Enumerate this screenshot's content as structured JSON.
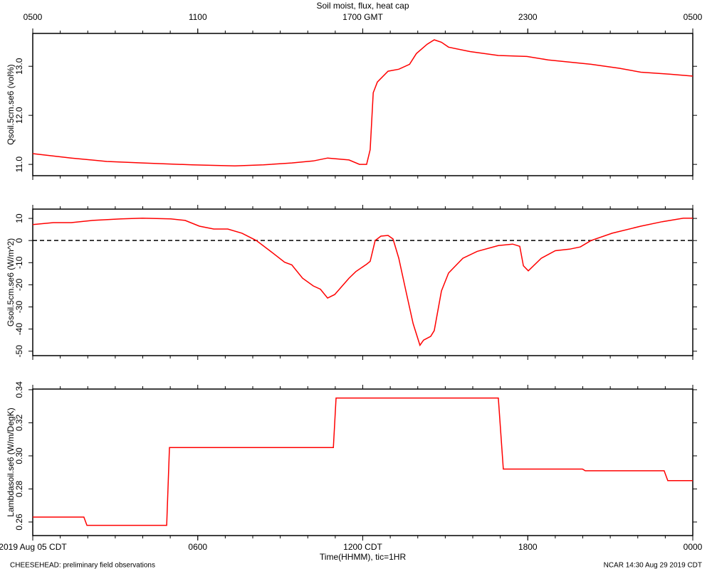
{
  "chart_data": [
    {
      "type": "line",
      "title": "Soil moist, flux, heat cap",
      "ylabel": "Qsoil.5cm.se6 (vol%)",
      "xlim": [
        0,
        24
      ],
      "top_xticks": [
        {
          "value": 0,
          "label": "0500"
        },
        {
          "value": 6,
          "label": "1100"
        },
        {
          "value": 12,
          "label": "1700 GMT"
        },
        {
          "value": 18,
          "label": "2300"
        },
        {
          "value": 24,
          "label": "0500"
        }
      ],
      "ylim": [
        10.77,
        13.67
      ],
      "yticks": [
        {
          "value": 11,
          "label": "11.0"
        },
        {
          "value": 12,
          "label": "12.0"
        },
        {
          "value": 13,
          "label": "13.0"
        }
      ],
      "series": [
        {
          "color": "#ff0000",
          "x": [
            0,
            1.4,
            2.69,
            3.99,
            5.8,
            7.35,
            8.39,
            9.42,
            10.2,
            10.72,
            11.5,
            11.88,
            12.14,
            12.27,
            12.38,
            12.53,
            12.92,
            13.31,
            13.7,
            13.95,
            14.34,
            14.6,
            14.86,
            15.12,
            15.9,
            16.93,
            17.97,
            18.74,
            20.3,
            21.33,
            22.11,
            23.15,
            24
          ],
          "values": [
            11.22,
            11.13,
            11.06,
            11.03,
            10.99,
            10.97,
            10.99,
            11.03,
            11.07,
            11.13,
            11.09,
            11.0,
            11.0,
            11.3,
            12.46,
            12.68,
            12.9,
            12.94,
            13.04,
            13.26,
            13.45,
            13.54,
            13.49,
            13.39,
            13.3,
            13.22,
            13.2,
            13.13,
            13.04,
            12.96,
            12.88,
            12.84,
            12.8
          ]
        }
      ]
    },
    {
      "type": "line",
      "ylabel": "Gsoil.5cm.se6 (W/m^2)",
      "xlim": [
        0,
        24
      ],
      "ylim": [
        -52,
        14.2
      ],
      "yticks": [
        -50,
        -40,
        -30,
        -20,
        -10,
        0,
        10
      ],
      "hline": 0,
      "series": [
        {
          "color": "#ff0000",
          "x": [
            0,
            0.75,
            1.4,
            2.17,
            3.21,
            3.99,
            5.02,
            5.54,
            6.06,
            6.58,
            7.09,
            7.61,
            8.13,
            8.65,
            9.16,
            9.42,
            9.81,
            10.2,
            10.46,
            10.72,
            10.98,
            11.5,
            11.75,
            12.14,
            12.27,
            12.45,
            12.66,
            12.92,
            13.1,
            13.31,
            13.57,
            13.83,
            14.08,
            14.21,
            14.47,
            14.6,
            14.86,
            15.12,
            15.64,
            16.16,
            16.93,
            17.45,
            17.71,
            17.84,
            18.02,
            18.49,
            19.0,
            19.52,
            19.91,
            20.3,
            21.07,
            22.11,
            22.89,
            23.66,
            24
          ],
          "values": [
            7.2,
            8.1,
            8.1,
            9.1,
            9.8,
            10.1,
            9.8,
            9.1,
            6.5,
            5.2,
            5.2,
            3.3,
            0,
            -4.9,
            -9.8,
            -11,
            -17,
            -20.5,
            -22,
            -26,
            -24.4,
            -17,
            -14,
            -10.7,
            -9.4,
            0,
            2.0,
            2.3,
            0.7,
            -8,
            -22.8,
            -37.5,
            -47.3,
            -45,
            -43.3,
            -40.7,
            -22.8,
            -14.7,
            -8,
            -4.9,
            -2.3,
            -1.6,
            -2.6,
            -11.4,
            -13.7,
            -8,
            -4.6,
            -3.9,
            -2.9,
            0,
            3.3,
            6.5,
            8.5,
            10.1,
            10.1
          ]
        }
      ]
    },
    {
      "type": "line",
      "ylabel": "Lambdasoil.se6 (W/m/DegK)",
      "xlabel": "Time(HHMM), tic=1HR",
      "xlim": [
        0,
        24
      ],
      "xticks": [
        {
          "value": 0,
          "label": "2019 Aug 05 CDT"
        },
        {
          "value": 6,
          "label": "0600"
        },
        {
          "value": 12,
          "label": "1200 CDT"
        },
        {
          "value": 18,
          "label": "1800"
        },
        {
          "value": 24,
          "label": "0000"
        }
      ],
      "ylim": [
        0.2518,
        0.3404
      ],
      "yticks": [
        0.26,
        0.28,
        {
          "value": 0.3,
          "label": "0.30"
        },
        0.32,
        0.34
      ],
      "series": [
        {
          "color": "#ff0000",
          "x": [
            0,
            1.86,
            1.97,
            4.87,
            4.97,
            10.93,
            11.03,
            16.93,
            17.11,
            19.99,
            20.09,
            22.96,
            23.09,
            24
          ],
          "values": [
            0.263,
            0.263,
            0.258,
            0.258,
            0.305,
            0.305,
            0.335,
            0.335,
            0.292,
            0.292,
            0.291,
            0.291,
            0.285,
            0.285
          ]
        }
      ]
    }
  ],
  "footer": {
    "left": "CHEESEHEAD: preliminary field observations",
    "right": "NCAR 14:30 Aug 29 2019 CDT"
  }
}
